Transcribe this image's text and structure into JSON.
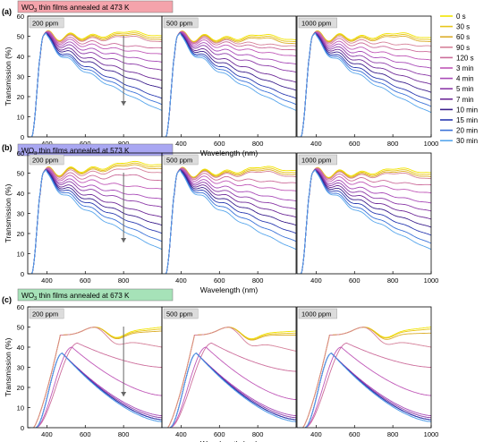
{
  "chart_data": {
    "type": "line",
    "xlabel": "Wavelength (nm)",
    "ylabel": "Transmission (%)",
    "xlim": [
      300,
      1000
    ],
    "xticks": [
      400,
      600,
      800,
      1000
    ],
    "grid": false,
    "legend_position": "right",
    "legend": [
      {
        "label": "0 s",
        "color": "#f2e400"
      },
      {
        "label": "30 s",
        "color": "#e8c51a"
      },
      {
        "label": "60 s",
        "color": "#dcae2c"
      },
      {
        "label": "90 s",
        "color": "#d6829a"
      },
      {
        "label": "120 s",
        "color": "#cc6c9a"
      },
      {
        "label": "3 min",
        "color": "#c058b8"
      },
      {
        "label": "4 min",
        "color": "#a84ab8"
      },
      {
        "label": "5 min",
        "color": "#8c3aa8"
      },
      {
        "label": "7 min",
        "color": "#6e2a98"
      },
      {
        "label": "10 min",
        "color": "#3a1e8c"
      },
      {
        "label": "15 min",
        "color": "#2a3ab0"
      },
      {
        "label": "20 min",
        "color": "#3a72d8"
      },
      {
        "label": "30 min",
        "color": "#58a6ec"
      }
    ],
    "rows": [
      {
        "tag": "(a)",
        "title_pre": "WO",
        "title_sub": "3",
        "title_post": " thin films annealed at 473 K",
        "badge_color": "#f4a3ab",
        "ylim": [
          0,
          60
        ],
        "yticks": [
          0,
          10,
          20,
          30,
          40,
          50,
          60
        ],
        "panels": [
          {
            "label": "200 ppm",
            "arrow": true,
            "final": [
              50,
              49,
              48,
              47,
              44,
              41,
              37,
              33,
              28,
              24,
              19,
              16,
              13
            ]
          },
          {
            "label": "500 ppm",
            "arrow": false,
            "final": [
              48,
              47,
              46,
              45,
              43,
              40,
              36,
              32,
              27,
              23,
              19,
              16,
              13
            ]
          },
          {
            "label": "1000 ppm",
            "arrow": false,
            "final": [
              49,
              48,
              47,
              45,
              42,
              38,
              34,
              30,
              26,
              22,
              18,
              15,
              12
            ]
          }
        ]
      },
      {
        "tag": "(b)",
        "title_pre": "WO",
        "title_sub": "3",
        "title_post": " thin films annealed at 573 K",
        "badge_color": "#a9a7f2",
        "ylim": [
          0,
          60
        ],
        "yticks": [
          0,
          10,
          20,
          30,
          40,
          50,
          60
        ],
        "panels": [
          {
            "label": "200 ppm",
            "arrow": true,
            "final": [
              54,
              53,
              52,
              50,
              46,
              42,
              37,
              33,
              28,
              24,
              20,
              16,
              12
            ]
          },
          {
            "label": "500 ppm",
            "arrow": false,
            "final": [
              51,
              50,
              49,
              48,
              45,
              41,
              36,
              32,
              28,
              24,
              20,
              16,
              12
            ]
          },
          {
            "label": "1000 ppm",
            "arrow": false,
            "final": [
              50,
              49,
              48,
              47,
              44,
              40,
              35,
              31,
              27,
              23,
              19,
              15,
              12
            ]
          }
        ]
      },
      {
        "tag": "(c)",
        "title_pre": "WO",
        "title_sub": "3",
        "title_post": " thin films annealed at 673 K",
        "badge_color": "#a6e2b8",
        "ylim": [
          0,
          60
        ],
        "yticks": [
          0,
          10,
          20,
          30,
          40,
          50,
          60
        ],
        "panels": [
          {
            "label": "200 ppm",
            "arrow": true,
            "final": [
              50,
              49,
              48,
              40,
              30,
              16,
              6,
              5,
              4,
              4,
              4,
              3,
              3
            ]
          },
          {
            "label": "500 ppm",
            "arrow": false,
            "final": [
              48,
              47,
              46,
              38,
              28,
              14,
              6,
              5,
              4,
              4,
              4,
              3,
              3
            ]
          },
          {
            "label": "1000 ppm",
            "arrow": false,
            "final": [
              50,
              49,
              47,
              40,
              30,
              16,
              6,
              5,
              4,
              4,
              4,
              3,
              3
            ]
          }
        ]
      }
    ]
  }
}
